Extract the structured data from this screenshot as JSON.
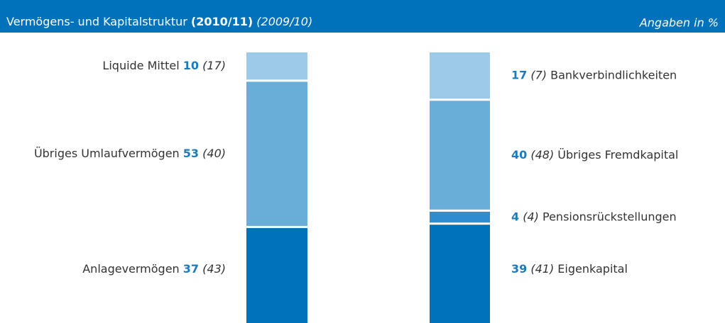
{
  "chart_data": {
    "type": "stacked_bar",
    "title": "Vermögens- und Kapitalstruktur",
    "title_current": "(2010/11)",
    "title_previous": "(2009/10)",
    "unit_note": "Angaben in %",
    "stacks": [
      {
        "segments": [
          {
            "name": "Anlagevermögen",
            "value": 37,
            "previous": 43,
            "previous_label": "(43)",
            "color": "#0072bb"
          },
          {
            "name": "Übriges Umlaufvermögen",
            "value": 53,
            "previous": 40,
            "previous_label": "(40)",
            "color": "#68aed8"
          },
          {
            "name": "Liquide Mittel",
            "value": 10,
            "previous": 17,
            "previous_label": "(17)",
            "color": "#9dcae9"
          }
        ]
      },
      {
        "segments": [
          {
            "name": "Eigenkapital",
            "value": 39,
            "previous": 41,
            "previous_label": "(41)",
            "color": "#0072bb"
          },
          {
            "name": "Pensionsrückstellungen",
            "value": 4,
            "previous": 4,
            "previous_label": "(4)",
            "color": "#2f8dcf"
          },
          {
            "name": "Übriges Fremdkapital",
            "value": 40,
            "previous": 48,
            "previous_label": "(48)",
            "color": "#68aed8"
          },
          {
            "name": "Bankverbindlichkeiten",
            "value": 17,
            "previous": 7,
            "previous_label": "(7)",
            "color": "#9dcae9"
          }
        ]
      }
    ]
  }
}
